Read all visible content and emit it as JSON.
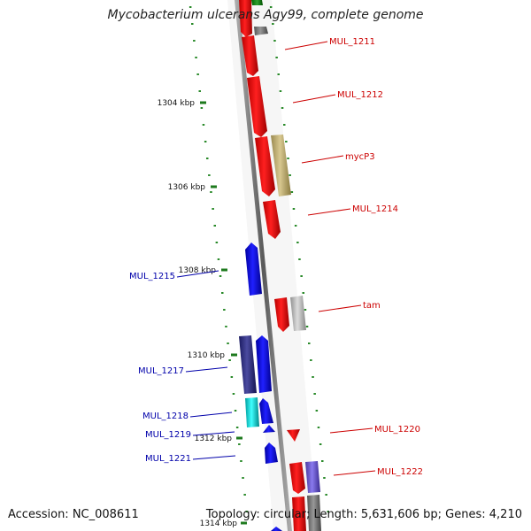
{
  "title": "Mycobacterium ulcerans Agy99, complete genome",
  "footer": {
    "accession": "Accession: NC_008611",
    "summary": "Topology: circular; Length: 5,631,606 bp; Genes: 4,210"
  },
  "colors": {
    "backbone": "#8a8a8a",
    "tick": "#2a8a2a",
    "forward_gene_label": "#cc0000",
    "reverse_gene_label": "#0000aa"
  },
  "scale_labels": [
    "1304 kbp",
    "1306 kbp",
    "1308 kbp",
    "1310 kbp",
    "1312 kbp",
    "1314 kbp"
  ],
  "genes": [
    {
      "label": "MUL_1211",
      "color": "#ff0000"
    },
    {
      "label": "MUL_1212",
      "color": "#ff0000"
    },
    {
      "label": "mycP3",
      "color": "#c8b878"
    },
    {
      "label": "MUL_1214",
      "color": "#ff0000"
    },
    {
      "label": "MUL_1215",
      "color": "#0000ee"
    },
    {
      "label": "tam",
      "color": "#ff0000"
    },
    {
      "label": "MUL_1217",
      "color": "#0000ee"
    },
    {
      "label": "MUL_1218",
      "color": "#00e0e0"
    },
    {
      "label": "MUL_1219",
      "color": "#0000ee"
    },
    {
      "label": "MUL_1220",
      "color": "#ff0000"
    },
    {
      "label": "MUL_1221",
      "color": "#0000ee"
    },
    {
      "label": "MUL_1222",
      "color": "#ff0000"
    }
  ]
}
